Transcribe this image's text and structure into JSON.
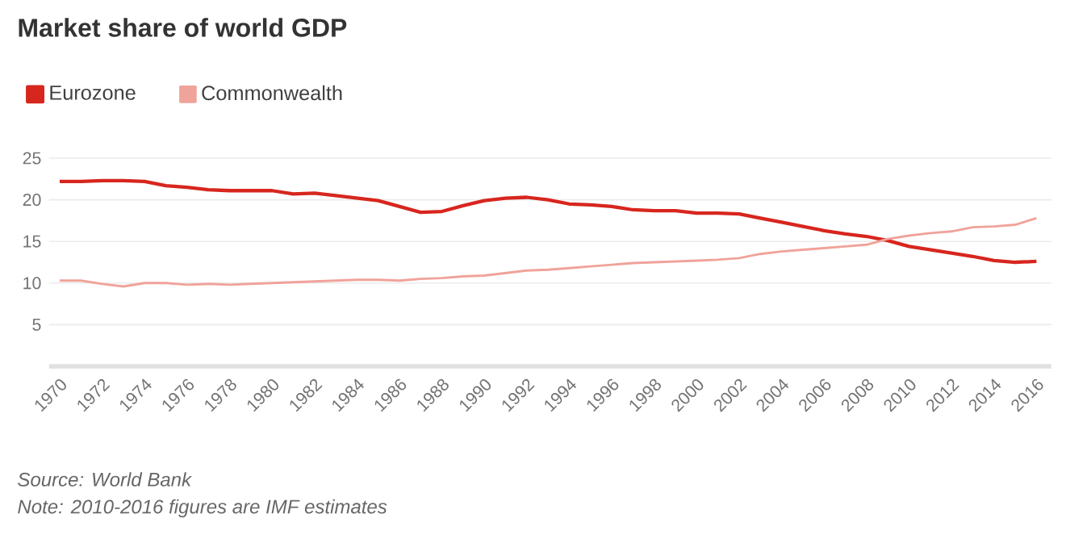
{
  "chart_data": {
    "type": "line",
    "title": "Market share of world GDP",
    "legend": "top left",
    "grid": "y",
    "marker": "none",
    "line_style": "solid",
    "x": [
      1970,
      1971,
      1972,
      1973,
      1974,
      1975,
      1976,
      1977,
      1978,
      1979,
      1980,
      1981,
      1982,
      1983,
      1984,
      1985,
      1986,
      1987,
      1988,
      1989,
      1990,
      1991,
      1992,
      1993,
      1994,
      1995,
      1996,
      1997,
      1998,
      1999,
      2000,
      2001,
      2002,
      2003,
      2004,
      2005,
      2006,
      2007,
      2008,
      2009,
      2010,
      2011,
      2012,
      2013,
      2014,
      2015,
      2016
    ],
    "series": [
      {
        "name": "Eurozone",
        "color": "#d7261e",
        "values": [
          22.2,
          22.2,
          22.3,
          22.3,
          22.2,
          21.7,
          21.5,
          21.2,
          21.1,
          21.1,
          21.1,
          20.7,
          20.8,
          20.5,
          20.2,
          19.9,
          19.2,
          18.5,
          18.6,
          19.3,
          19.9,
          20.2,
          20.3,
          20.0,
          19.5,
          19.4,
          19.2,
          18.8,
          18.7,
          18.7,
          18.4,
          18.4,
          18.3,
          17.8,
          17.3,
          16.8,
          16.3,
          15.9,
          15.6,
          15.1,
          14.4,
          14.0,
          13.6,
          13.2,
          12.7,
          12.5,
          12.6
        ]
      },
      {
        "name": "Commonwealth",
        "color": "#f0a39a",
        "values": [
          10.3,
          10.3,
          9.9,
          9.6,
          10.0,
          10.0,
          9.8,
          9.9,
          9.8,
          9.9,
          10.0,
          10.1,
          10.2,
          10.3,
          10.4,
          10.4,
          10.3,
          10.5,
          10.6,
          10.8,
          10.9,
          11.2,
          11.5,
          11.6,
          11.8,
          12.0,
          12.2,
          12.4,
          12.5,
          12.6,
          12.7,
          12.8,
          13.0,
          13.5,
          13.8,
          14.0,
          14.2,
          14.4,
          14.6,
          15.3,
          15.7,
          16.0,
          16.2,
          16.7,
          16.8,
          17.0,
          17.8
        ]
      }
    ],
    "xlim": [
      1969.5,
      2016.7
    ],
    "xticks": [
      1970,
      1972,
      1974,
      1976,
      1978,
      1980,
      1982,
      1984,
      1986,
      1988,
      1990,
      1992,
      1994,
      1996,
      1998,
      2000,
      2002,
      2004,
      2006,
      2008,
      2010,
      2012,
      2014,
      2016
    ],
    "ylim": [
      0,
      25
    ],
    "yticks": [
      5,
      10,
      15,
      20,
      25
    ],
    "annotations": [
      "Source: World Bank",
      "Note: 2010-2016 figures are IMF estimates"
    ]
  }
}
